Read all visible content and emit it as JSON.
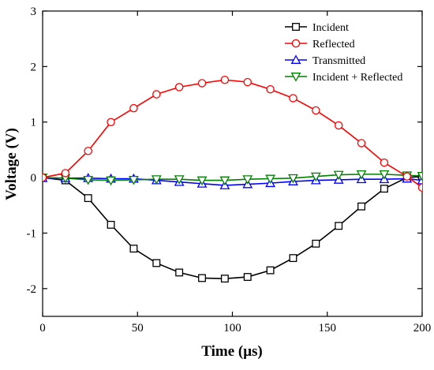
{
  "chart_data": {
    "type": "line",
    "title": "",
    "xlabel": "Time (μs)",
    "ylabel": "Voltage (V)",
    "xlim": [
      0,
      200
    ],
    "ylim": [
      -2.5,
      3
    ],
    "xticks": [
      0,
      50,
      100,
      150,
      200
    ],
    "yticks": [
      -2,
      -1,
      0,
      1,
      2,
      3
    ],
    "grid": false,
    "legend_position": "top-right",
    "series": [
      {
        "name": "Incident",
        "color": "#000000",
        "marker": "square",
        "x": [
          0,
          12,
          24,
          36,
          48,
          60,
          72,
          84,
          96,
          108,
          120,
          132,
          144,
          156,
          168,
          180,
          192,
          200
        ],
        "y": [
          0,
          -0.05,
          -0.37,
          -0.85,
          -1.28,
          -1.54,
          -1.71,
          -1.81,
          -1.82,
          -1.79,
          -1.67,
          -1.45,
          -1.19,
          -0.87,
          -0.52,
          -0.2,
          0.0,
          0.02
        ]
      },
      {
        "name": "Reflected",
        "color": "#ff0000",
        "marker": "circle",
        "x": [
          0,
          12,
          24,
          36,
          48,
          60,
          72,
          84,
          96,
          108,
          120,
          132,
          144,
          156,
          168,
          180,
          192,
          200
        ],
        "y": [
          0,
          0.08,
          0.48,
          1.0,
          1.25,
          1.5,
          1.63,
          1.7,
          1.76,
          1.72,
          1.59,
          1.43,
          1.21,
          0.94,
          0.62,
          0.27,
          0.02,
          -0.18
        ]
      },
      {
        "name": "Transmitted",
        "color": "#0000ff",
        "marker": "triangle-up",
        "x": [
          0,
          12,
          24,
          36,
          48,
          60,
          72,
          84,
          96,
          108,
          120,
          132,
          144,
          156,
          168,
          180,
          192,
          200
        ],
        "y": [
          -0.01,
          -0.01,
          -0.01,
          -0.02,
          -0.02,
          -0.05,
          -0.08,
          -0.11,
          -0.14,
          -0.12,
          -0.1,
          -0.07,
          -0.05,
          -0.04,
          -0.03,
          -0.03,
          -0.02,
          -0.05
        ]
      },
      {
        "name": "Incident + Reflected",
        "color": "#008000",
        "marker": "triangle-down",
        "x": [
          0,
          12,
          24,
          36,
          48,
          60,
          72,
          84,
          96,
          108,
          120,
          132,
          144,
          156,
          168,
          180,
          192,
          200
        ],
        "y": [
          0,
          -0.01,
          -0.04,
          -0.05,
          -0.04,
          -0.03,
          -0.03,
          -0.05,
          -0.05,
          -0.03,
          -0.02,
          -0.01,
          0.02,
          0.05,
          0.06,
          0.06,
          0.04,
          0.03
        ]
      }
    ]
  }
}
